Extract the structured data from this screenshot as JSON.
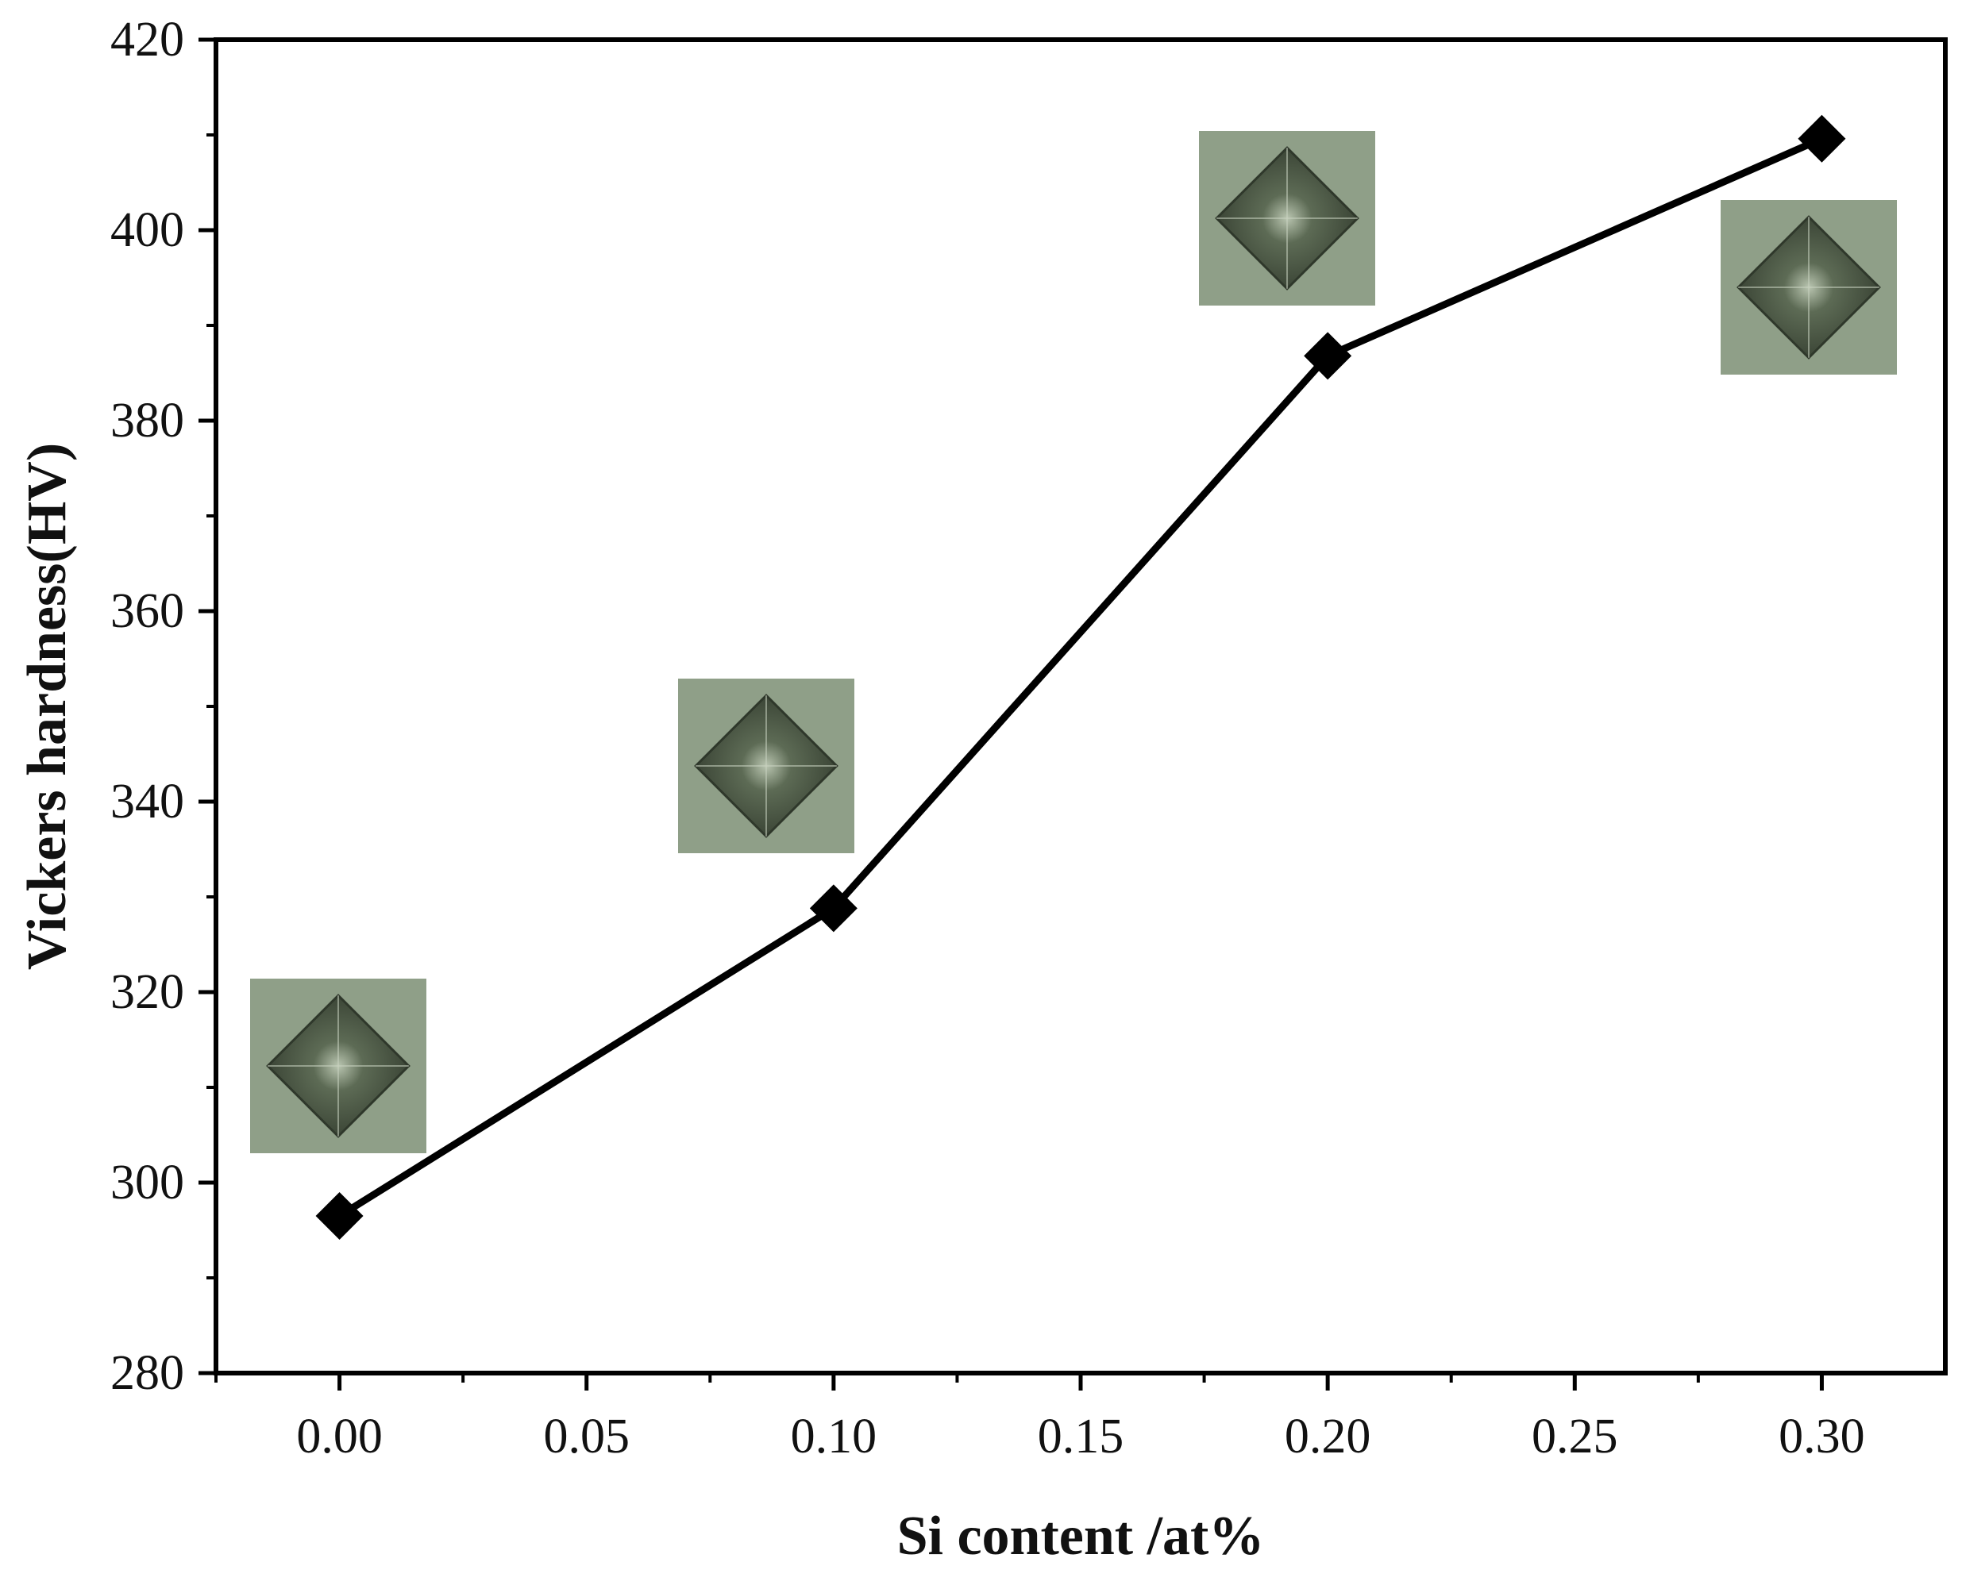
{
  "chart_data": {
    "type": "line",
    "title": "",
    "xlabel": "Si content /at%",
    "ylabel": "Vickers hardness(HV)",
    "xlim": [
      -0.025,
      0.325
    ],
    "ylim": [
      280,
      420
    ],
    "x_ticks": [
      "0.00",
      "0.05",
      "0.10",
      "0.15",
      "0.20",
      "0.25",
      "0.30"
    ],
    "y_ticks": [
      "280",
      "300",
      "320",
      "340",
      "360",
      "380",
      "400",
      "420"
    ],
    "grid": false,
    "legend": "none",
    "series": [
      {
        "marker": "diamond",
        "color": "#000000",
        "x": [
          0.0,
          0.1,
          0.2,
          0.3
        ],
        "y": [
          296.5,
          328.8,
          386.8,
          409.6
        ]
      }
    ],
    "insets": [
      {
        "depicts": "micrograph of Vickers indentation",
        "at_x": 0.0
      },
      {
        "depicts": "micrograph of Vickers indentation",
        "at_x": 0.1
      },
      {
        "depicts": "micrograph of Vickers indentation",
        "at_x": 0.2
      },
      {
        "depicts": "micrograph of Vickers indentation",
        "at_x": 0.3
      }
    ],
    "colors": {
      "line": "#000000",
      "inset_background": "#8f9f88",
      "indent": "#3b4536"
    }
  }
}
